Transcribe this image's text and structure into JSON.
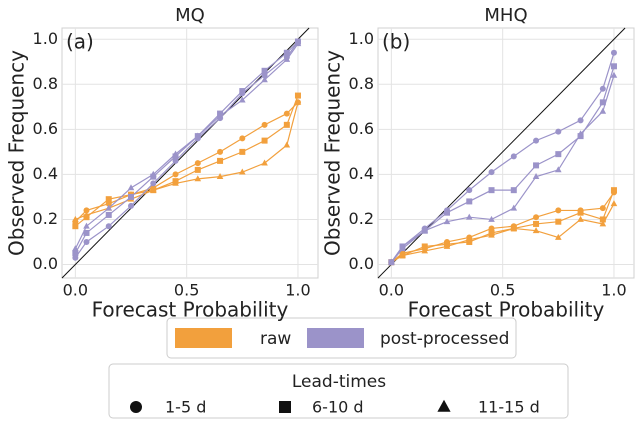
{
  "chart_data": [
    {
      "type": "line",
      "title": "MQ",
      "annotation": "(a)",
      "x_label": "Forecast Probability",
      "y_label": "Observed Frequency",
      "xlim": [
        -0.06,
        1.09
      ],
      "ylim": [
        -0.06,
        1.05
      ],
      "xticks": [
        {
          "value": 0,
          "label": "0.0"
        },
        {
          "value": 0.5,
          "label": "0.5"
        },
        {
          "value": 1,
          "label": "1.0"
        }
      ],
      "yticks": [
        {
          "value": 0,
          "label": "0.0"
        },
        {
          "value": 0.2,
          "label": "0.2"
        },
        {
          "value": 0.4,
          "label": "0.4"
        },
        {
          "value": 0.6,
          "label": "0.6"
        },
        {
          "value": 0.8,
          "label": "0.8"
        },
        {
          "value": 1,
          "label": "1.0"
        }
      ],
      "grid": true,
      "x": [
        0,
        0.05,
        0.15,
        0.25,
        0.35,
        0.45,
        0.55,
        0.65,
        0.75,
        0.85,
        0.95,
        1.0
      ],
      "series": [
        {
          "color": "#f2a03d",
          "marker": "circle",
          "values": [
            0.19,
            0.24,
            0.27,
            0.31,
            0.34,
            0.4,
            0.45,
            0.5,
            0.56,
            0.62,
            0.67,
            0.72
          ]
        },
        {
          "color": "#f2a03d",
          "marker": "square",
          "values": [
            0.17,
            0.21,
            0.29,
            0.31,
            0.33,
            0.37,
            0.42,
            0.46,
            0.5,
            0.55,
            0.62,
            0.75
          ]
        },
        {
          "color": "#f2a03d",
          "marker": "triangle",
          "values": [
            0.2,
            0.22,
            0.25,
            0.29,
            0.33,
            0.36,
            0.38,
            0.39,
            0.41,
            0.45,
            0.53,
            0.72
          ]
        },
        {
          "color": "#9b93c9",
          "marker": "circle",
          "values": [
            0.03,
            0.1,
            0.17,
            0.26,
            0.36,
            0.46,
            0.56,
            0.65,
            0.76,
            0.84,
            0.92,
            0.99
          ]
        },
        {
          "color": "#9b93c9",
          "marker": "square",
          "values": [
            0.05,
            0.14,
            0.22,
            0.3,
            0.39,
            0.48,
            0.57,
            0.67,
            0.77,
            0.86,
            0.94,
            0.99
          ]
        },
        {
          "color": "#9b93c9",
          "marker": "triangle",
          "values": [
            0.07,
            0.17,
            0.25,
            0.34,
            0.4,
            0.49,
            0.57,
            0.66,
            0.73,
            0.82,
            0.91,
            0.98
          ]
        }
      ]
    },
    {
      "type": "line",
      "title": "MHQ",
      "annotation": "(b)",
      "x_label": "Forecast Probability",
      "y_label": "Observed Frequency",
      "xlim": [
        -0.06,
        1.09
      ],
      "ylim": [
        -0.06,
        1.05
      ],
      "xticks": [
        {
          "value": 0,
          "label": "0.0"
        },
        {
          "value": 0.5,
          "label": "0.5"
        },
        {
          "value": 1,
          "label": "1.0"
        }
      ],
      "yticks": [
        {
          "value": 0,
          "label": "0.0"
        },
        {
          "value": 0.2,
          "label": "0.2"
        },
        {
          "value": 0.4,
          "label": "0.4"
        },
        {
          "value": 0.6,
          "label": "0.6"
        },
        {
          "value": 0.8,
          "label": "0.8"
        },
        {
          "value": 1,
          "label": "1.0"
        }
      ],
      "grid": true,
      "x": [
        0,
        0.05,
        0.15,
        0.25,
        0.35,
        0.45,
        0.55,
        0.65,
        0.75,
        0.85,
        0.95,
        1.0
      ],
      "series": [
        {
          "color": "#f2a03d",
          "marker": "circle",
          "values": [
            0.01,
            0.05,
            0.07,
            0.1,
            0.12,
            0.16,
            0.17,
            0.21,
            0.24,
            0.24,
            0.25,
            0.32
          ]
        },
        {
          "color": "#f2a03d",
          "marker": "square",
          "values": [
            0.01,
            0.04,
            0.08,
            0.09,
            0.1,
            0.14,
            0.16,
            0.18,
            0.19,
            0.23,
            0.2,
            0.33
          ]
        },
        {
          "color": "#f2a03d",
          "marker": "triangle",
          "values": [
            0.01,
            0.04,
            0.06,
            0.08,
            0.11,
            0.13,
            0.16,
            0.15,
            0.12,
            0.2,
            0.18,
            0.27
          ]
        },
        {
          "color": "#9b93c9",
          "marker": "circle",
          "values": [
            0.01,
            0.08,
            0.16,
            0.24,
            0.33,
            0.41,
            0.48,
            0.55,
            0.59,
            0.64,
            0.78,
            0.94
          ]
        },
        {
          "color": "#9b93c9",
          "marker": "square",
          "values": [
            0.01,
            0.08,
            0.15,
            0.23,
            0.28,
            0.33,
            0.33,
            0.44,
            0.49,
            0.57,
            0.72,
            0.88
          ]
        },
        {
          "color": "#9b93c9",
          "marker": "triangle",
          "values": [
            0.01,
            0.07,
            0.15,
            0.19,
            0.21,
            0.2,
            0.25,
            0.39,
            0.42,
            0.58,
            0.68,
            0.84
          ]
        }
      ]
    }
  ],
  "legend": {
    "items": [
      {
        "label": "raw",
        "color": "#f2a03d"
      },
      {
        "label": "post-processed",
        "color": "#9b93c9"
      }
    ]
  },
  "lead_times": {
    "title": "Lead-times",
    "items": [
      {
        "label": "1-5 d",
        "marker": "circle"
      },
      {
        "label": "6-10 d",
        "marker": "square"
      },
      {
        "label": "11-15 d",
        "marker": "triangle"
      }
    ]
  }
}
